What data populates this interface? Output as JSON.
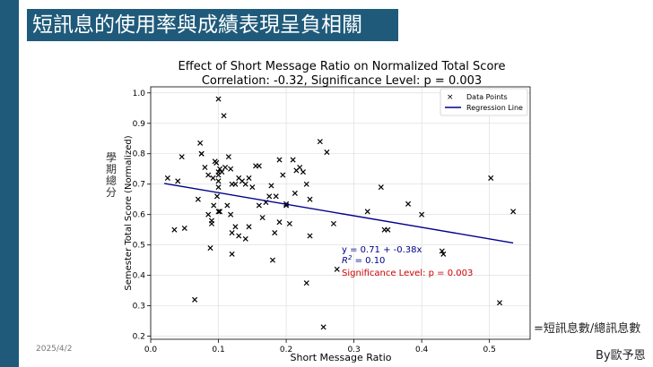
{
  "slide": {
    "title": "短訊息的使用率與成績表現呈負相關",
    "date": "2025/4/2",
    "formula_note": "=短訊息數/總訊息數",
    "author": "By歐予恩",
    "side_label": "學期總分"
  },
  "colors": {
    "slide_accent": "#1f5a7a",
    "points": "#000000",
    "regression_line": "#00008b",
    "equation_text": "#00008b",
    "significance_text": "#cc0000"
  },
  "chart_data": {
    "type": "scatter",
    "title": "Effect of Short Message Ratio on Normalized Total Score",
    "subtitle": "Correlation: -0.32, Significance Level: p = 0.003",
    "xlabel": "Short Message Ratio",
    "ylabel": "Semester Total Score (Normalized)",
    "xlim": [
      0.0,
      0.56
    ],
    "ylim": [
      0.19,
      1.02
    ],
    "xticks": [
      0.0,
      0.1,
      0.2,
      0.3,
      0.4,
      0.5
    ],
    "xtick_labels": [
      "0.0",
      "0.1",
      "0.2",
      "0.3",
      "0.4",
      "0.5"
    ],
    "yticks": [
      0.2,
      0.3,
      0.4,
      0.5,
      0.6,
      0.7,
      0.8,
      0.9,
      1.0
    ],
    "ytick_labels": [
      "0.2",
      "0.3",
      "0.4",
      "0.5",
      "0.6",
      "0.7",
      "0.8",
      "0.9",
      "1.0"
    ],
    "grid": true,
    "legend": {
      "position": "top-right",
      "entries": [
        "Data Points",
        "Regression Line"
      ]
    },
    "series": [
      {
        "name": "Data Points",
        "marker": "x",
        "x": [
          0.025,
          0.04,
          0.046,
          0.035,
          0.05,
          0.065,
          0.073,
          0.075,
          0.08,
          0.085,
          0.092,
          0.095,
          0.097,
          0.1,
          0.1,
          0.1,
          0.1,
          0.1,
          0.102,
          0.105,
          0.108,
          0.11,
          0.115,
          0.118,
          0.12,
          0.07,
          0.09,
          0.093,
          0.098,
          0.12,
          0.125,
          0.13,
          0.135,
          0.14,
          0.145,
          0.15,
          0.155,
          0.16,
          0.165,
          0.085,
          0.088,
          0.09,
          0.102,
          0.118,
          0.12,
          0.125,
          0.13,
          0.14,
          0.145,
          0.16,
          0.175,
          0.18,
          0.183,
          0.185,
          0.19,
          0.195,
          0.2,
          0.205,
          0.21,
          0.213,
          0.215,
          0.22,
          0.225,
          0.23,
          0.235,
          0.17,
          0.19,
          0.2,
          0.178,
          0.1,
          0.113,
          0.075,
          0.23,
          0.25,
          0.26,
          0.235,
          0.255,
          0.27,
          0.275,
          0.32,
          0.34,
          0.345,
          0.35,
          0.38,
          0.4,
          0.43,
          0.432,
          0.502,
          0.515,
          0.535
        ],
        "y": [
          0.72,
          0.71,
          0.79,
          0.55,
          0.555,
          0.32,
          0.835,
          0.8,
          0.755,
          0.73,
          0.72,
          0.775,
          0.77,
          0.98,
          0.74,
          0.73,
          0.71,
          0.69,
          0.75,
          0.74,
          0.925,
          0.755,
          0.79,
          0.75,
          0.7,
          0.65,
          0.57,
          0.63,
          0.66,
          0.54,
          0.7,
          0.72,
          0.71,
          0.7,
          0.72,
          0.69,
          0.76,
          0.76,
          0.59,
          0.6,
          0.49,
          0.58,
          0.61,
          0.6,
          0.47,
          0.56,
          0.53,
          0.52,
          0.56,
          0.63,
          0.66,
          0.45,
          0.54,
          0.66,
          0.575,
          0.73,
          0.635,
          0.57,
          0.78,
          0.67,
          0.745,
          0.755,
          0.74,
          0.7,
          0.53,
          0.64,
          0.78,
          0.63,
          0.695,
          0.61,
          0.63,
          0.8,
          0.375,
          0.84,
          0.805,
          0.65,
          0.23,
          0.57,
          0.42,
          0.61,
          0.69,
          0.55,
          0.55,
          0.635,
          0.6,
          0.48,
          0.47,
          0.72,
          0.31,
          0.61
        ]
      }
    ],
    "regression": {
      "name": "Regression Line",
      "intercept": 0.71,
      "slope": -0.38,
      "x_range": [
        0.02,
        0.535
      ]
    },
    "annotations": {
      "equation": "y = 0.71 + -0.38x",
      "r2_symbol": "R",
      "r2_exponent": "2",
      "r2_value": " = 0.10",
      "significance": "Significance Level: p = 0.003"
    }
  }
}
